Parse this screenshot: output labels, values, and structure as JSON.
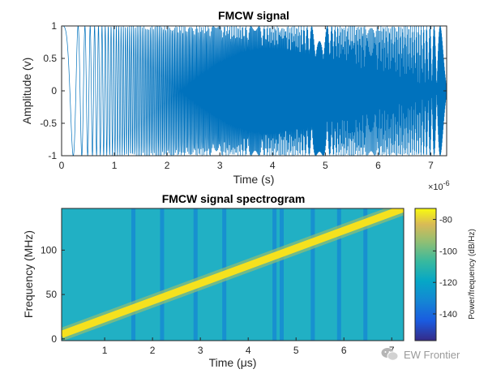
{
  "colors": {
    "signal": "#0072bd",
    "axis": "#262626",
    "spec_bg": "#21b0c4",
    "spec_ridge": "#f5e11e",
    "watermark": "#9a9a9a"
  },
  "chart_data": [
    {
      "type": "line",
      "title": "FMCW signal",
      "xlabel": "Time (s)",
      "ylabel": "Amplitude (v)",
      "x_multiplier": "×10",
      "x_multiplier_exp": "-6",
      "xlim": [
        0,
        7.3
      ],
      "ylim": [
        -1,
        1
      ],
      "xticks": [
        "0",
        "1",
        "2",
        "3",
        "4",
        "5",
        "6",
        "7"
      ],
      "xtick_values": [
        0,
        1,
        2,
        3,
        4,
        5,
        6,
        7
      ],
      "yticks": [
        "-1",
        "-0.5",
        "0",
        "0.5",
        "1"
      ],
      "ytick_values": [
        -1,
        -0.5,
        0,
        0.5,
        1
      ],
      "series": [
        {
          "signal": "linear up-chirp, unit amplitude, instantaneous frequency 0 → 150 MHz over 0 – 7.33 µs",
          "f_start_mhz": 0,
          "f_end_mhz": 150,
          "duration_us": 7.33,
          "amplitude": 1
        }
      ]
    },
    {
      "type": "heatmap",
      "title": "FMCW signal spectrogram",
      "xlabel": "Time (μs)",
      "ylabel": "Frequency (MHz)",
      "xlim": [
        0.1,
        7.25
      ],
      "ylim": [
        -2,
        147
      ],
      "xticks": [
        "1",
        "2",
        "3",
        "4",
        "5",
        "6",
        "7"
      ],
      "xtick_values": [
        1,
        2,
        3,
        4,
        5,
        6,
        7
      ],
      "yticks": [
        "0",
        "50",
        "100"
      ],
      "ytick_values": [
        0,
        50,
        100
      ],
      "ridge": {
        "t_start_us": 0.1,
        "f_start_mhz": 5,
        "t_end_us": 7.25,
        "f_end_mhz": 147
      },
      "dark_columns_us": [
        1.6,
        2.2,
        2.9,
        3.5,
        4.55,
        4.7,
        5.35,
        5.9,
        6.45
      ],
      "colorbar": {
        "label": "Power/frequency (dB/Hz)",
        "ticks": [
          "-80",
          "-100",
          "-120",
          "-140"
        ],
        "tick_values": [
          -80,
          -100,
          -120,
          -140
        ],
        "range": [
          -157,
          -73
        ]
      }
    }
  ],
  "watermark": {
    "text": "EW Frontier"
  }
}
